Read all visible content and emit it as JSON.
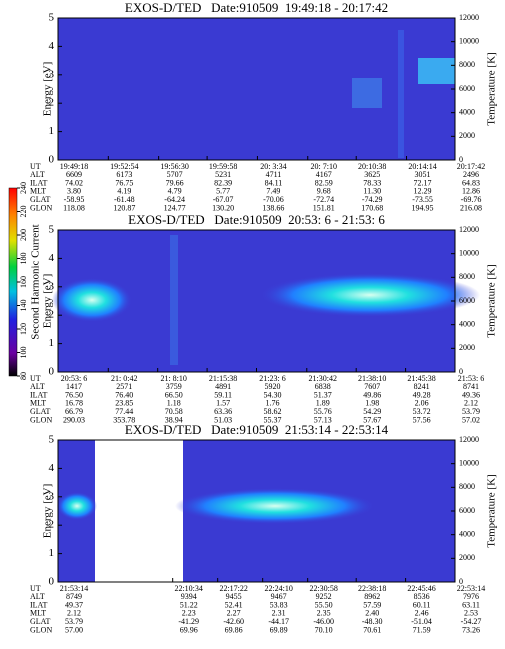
{
  "chart_data": [
    {
      "type": "spectrogram",
      "title": "EXOS-D/TED   Date:910509  19:49:18 - 20:17:42",
      "ylabel": "Energy [eV]",
      "y2label": "Temperature [K]",
      "ylim": [
        0,
        5
      ],
      "yticks": [
        0,
        1,
        2,
        3,
        4,
        5
      ],
      "y2lim": [
        0,
        12000
      ],
      "y2ticks": [
        0,
        2000,
        4000,
        6000,
        8000,
        10000,
        12000
      ],
      "ephemeris": {
        "labels": [
          "UT",
          "ALT",
          "ILAT",
          "MLT",
          "GLAT",
          "GLON"
        ],
        "rows": [
          [
            "19:49:18",
            "19:52:54",
            "19:56:30",
            "19:59:58",
            "20: 3:34",
            "20: 7:10",
            "20:10:38",
            "20:14:14",
            "20:17:42"
          ],
          [
            "6609",
            "6173",
            "5707",
            "5231",
            "4711",
            "4167",
            "3625",
            "3051",
            "2496"
          ],
          [
            "74.02",
            "76.75",
            "79.66",
            "82.39",
            "84.11",
            "82.59",
            "78.33",
            "72.17",
            "64.83"
          ],
          [
            "3.80",
            "4.19",
            "4.79",
            "5.77",
            "7.49",
            "9.68",
            "11.30",
            "12.29",
            "12.86"
          ],
          [
            "-58.95",
            "-61.48",
            "-64.24",
            "-67.07",
            "-70.06",
            "-72.74",
            "-74.29",
            "-73.55",
            "-69.76"
          ],
          [
            "118.08",
            "120.87",
            "124.77",
            "130.20",
            "138.66",
            "151.81",
            "170.68",
            "194.95",
            "216.08"
          ]
        ]
      }
    },
    {
      "type": "spectrogram",
      "title": "EXOS-D/TED   Date:910509  20:53: 6 - 21:53: 6",
      "ylabel": "Energy [eV]",
      "y2label": "Temperature [K]",
      "ylim": [
        0,
        5
      ],
      "yticks": [
        0,
        1,
        2,
        3,
        4,
        5
      ],
      "y2lim": [
        0,
        12000
      ],
      "y2ticks": [
        0,
        2000,
        4000,
        6000,
        8000,
        10000,
        12000
      ],
      "ephemeris": {
        "labels": [
          "UT",
          "ALT",
          "ILAT",
          "MLT",
          "GLAT",
          "GLON"
        ],
        "rows": [
          [
            "20:53: 6",
            "21: 0:42",
            "21: 8:10",
            "21:15:38",
            "21:23: 6",
            "21:30:42",
            "21:38:10",
            "21:45:38",
            "21:53: 6"
          ],
          [
            "1417",
            "2571",
            "3759",
            "4891",
            "5920",
            "6838",
            "7607",
            "8241",
            "8741"
          ],
          [
            "76.50",
            "76.40",
            "66.50",
            "59.11",
            "54.30",
            "51.37",
            "49.86",
            "49.28",
            "49.36"
          ],
          [
            "16.78",
            "23.85",
            "1.18",
            "1.57",
            "1.76",
            "1.89",
            "1.98",
            "2.06",
            "2.12"
          ],
          [
            "66.79",
            "77.44",
            "70.58",
            "63.36",
            "58.62",
            "55.76",
            "54.29",
            "53.72",
            "53.79"
          ],
          [
            "290.03",
            "353.78",
            "38.94",
            "51.03",
            "55.37",
            "57.13",
            "57.67",
            "57.56",
            "57.02"
          ]
        ]
      }
    },
    {
      "type": "spectrogram",
      "title": "EXOS-D/TED   Date:910509  21:53:14 - 22:53:14",
      "ylabel": "Energy [eV]",
      "y2label": "Temperature [K]",
      "ylim": [
        0,
        5
      ],
      "yticks": [
        0,
        1,
        2,
        3,
        4,
        5
      ],
      "y2lim": [
        0,
        12000
      ],
      "y2ticks": [
        0,
        2000,
        4000,
        6000,
        8000,
        10000,
        12000
      ],
      "ephemeris": {
        "labels": [
          "UT",
          "ALT",
          "ILAT",
          "MLT",
          "GLAT",
          "GLON"
        ],
        "rows": [
          [
            "21:53:14",
            "22:10:34",
            "22:17:22",
            "22:24:10",
            "22:30:58",
            "22:38:18",
            "22:45:46",
            "22:53:14"
          ],
          [
            "8749",
            "9394",
            "9455",
            "9467",
            "9252",
            "8962",
            "8536",
            "7976"
          ],
          [
            "49.37",
            "51.22",
            "52.41",
            "53.83",
            "55.50",
            "57.59",
            "60.11",
            "63.11"
          ],
          [
            "2.12",
            "2.23",
            "2.27",
            "2.31",
            "2.35",
            "2.40",
            "2.46",
            "2.53"
          ],
          [
            "53.79",
            "-41.29",
            "-42.60",
            "-44.17",
            "-46.00",
            "-48.30",
            "-51.04",
            "-54.27"
          ],
          [
            "57.00",
            "69.96",
            "69.86",
            "69.89",
            "70.10",
            "70.61",
            "71.59",
            "73.26"
          ]
        ]
      }
    }
  ],
  "colorbar": {
    "label": "Second Harmonic Current",
    "ticks": [
      80,
      100,
      120,
      140,
      160,
      180,
      200,
      220,
      240
    ]
  }
}
